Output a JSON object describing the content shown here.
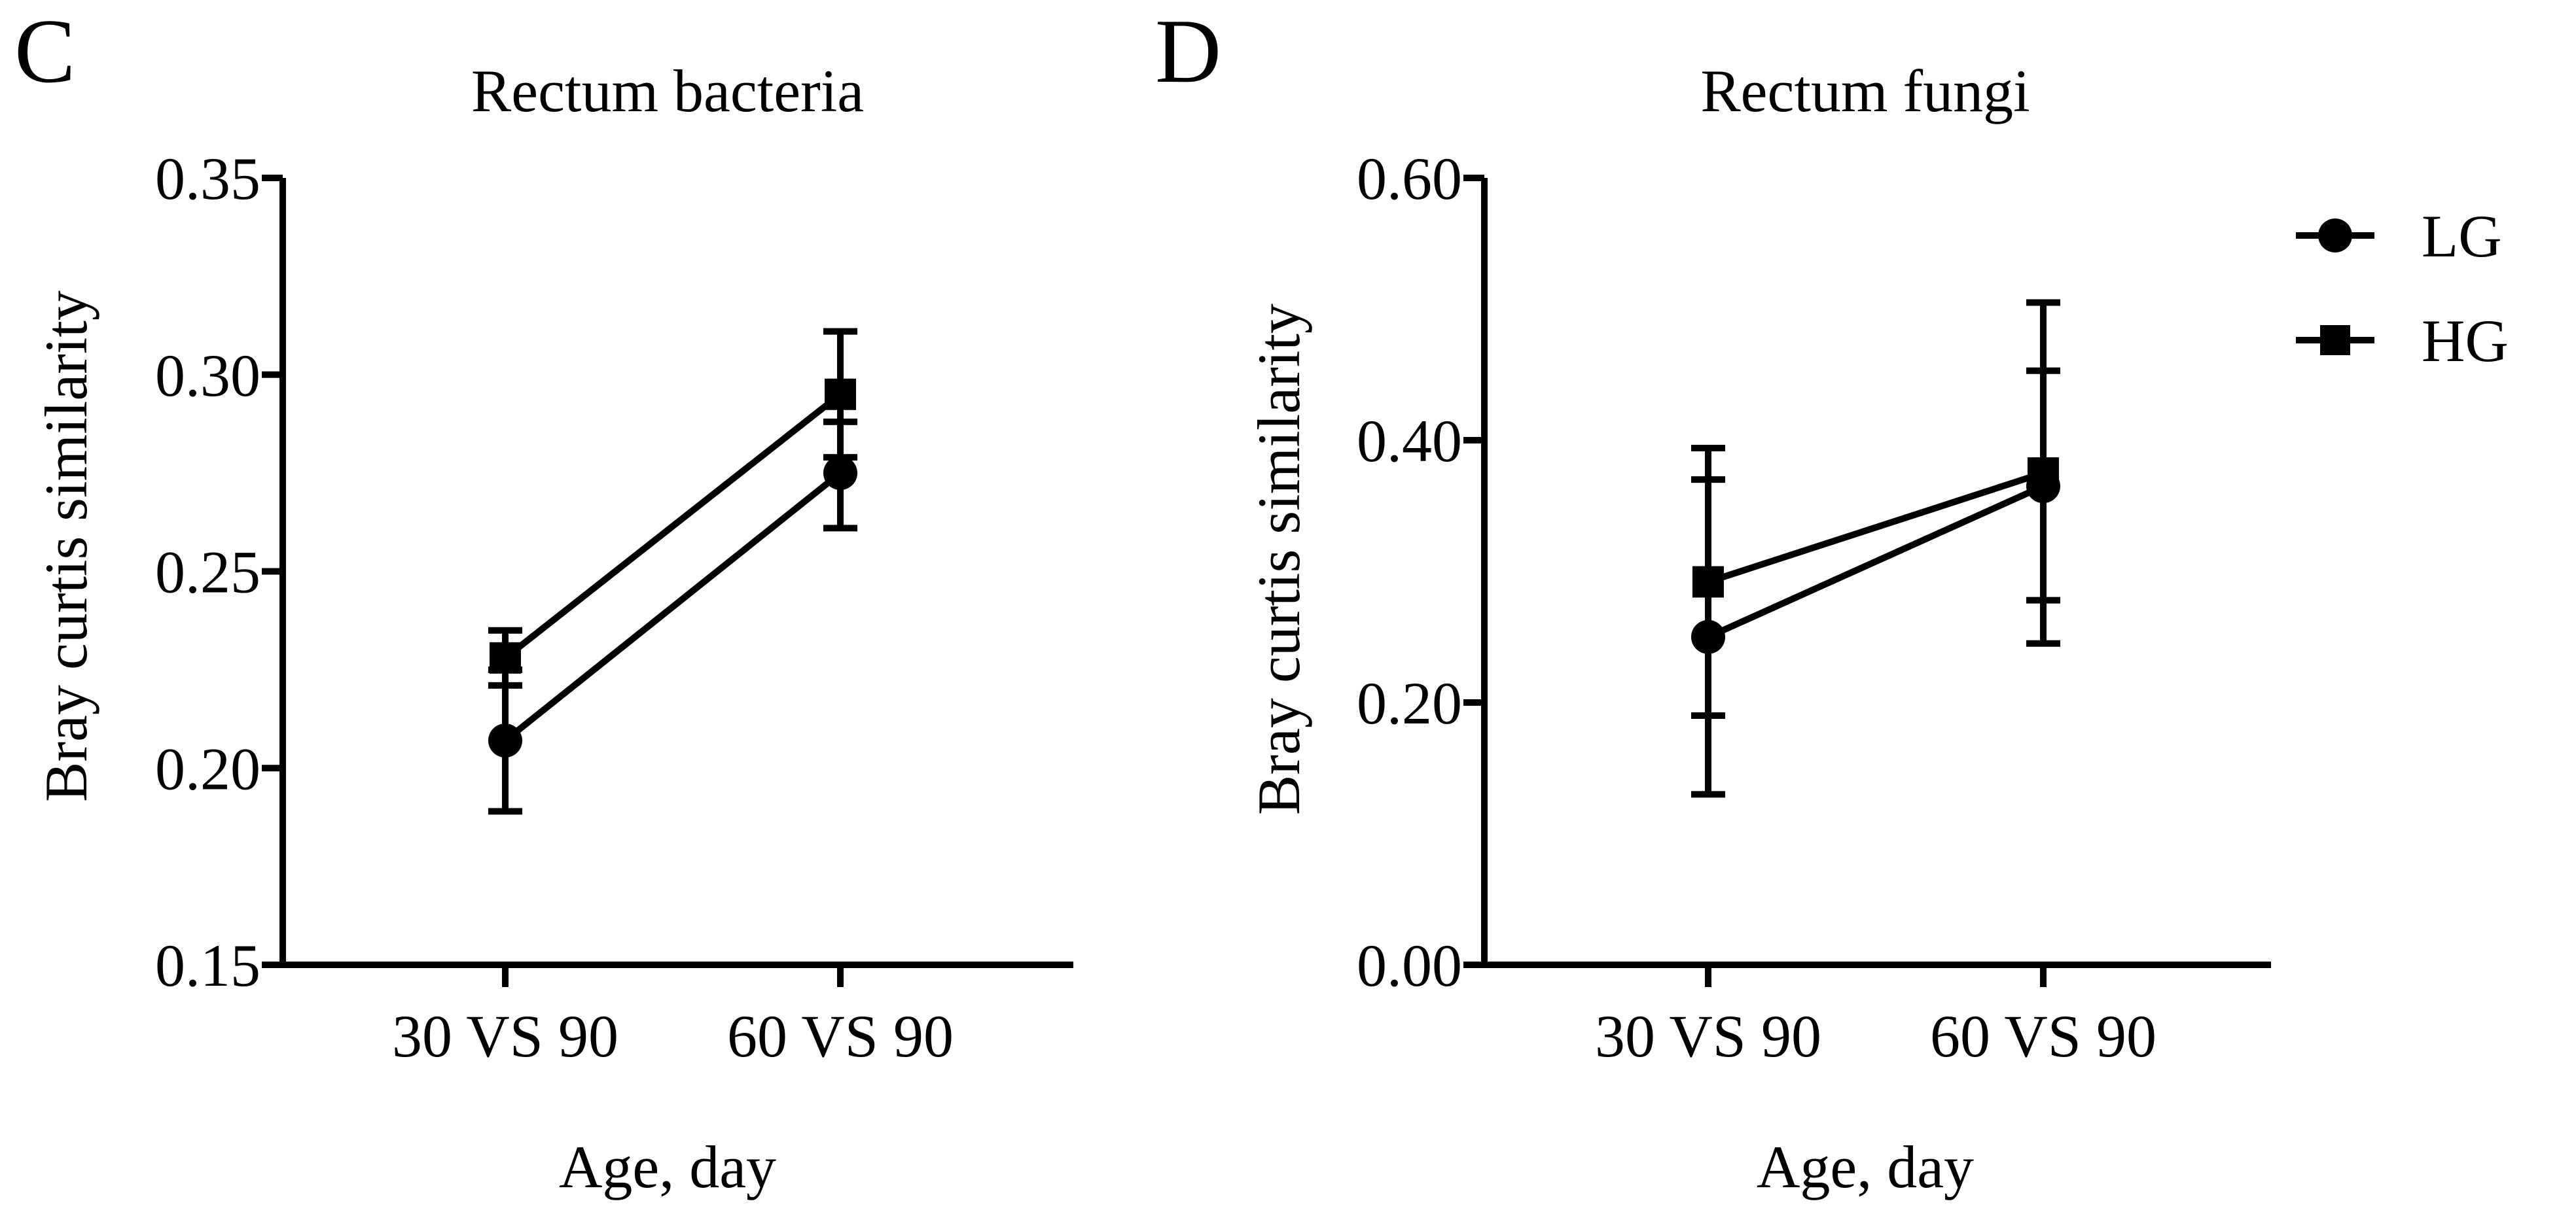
{
  "panels": [
    {
      "panel_label": "C",
      "legend": null
    },
    {
      "panel_label": "D",
      "legend": [
        {
          "name": "LG",
          "marker": "circle-icon"
        },
        {
          "name": "HG",
          "marker": "square-icon"
        }
      ]
    }
  ],
  "chart_data": [
    {
      "type": "line",
      "title": "Rectum bacteria",
      "xlabel": "Age, day",
      "ylabel": "Bray curtis similarity",
      "categories": [
        "30 VS 90",
        "60 VS 90"
      ],
      "ylim": [
        0.15,
        0.35
      ],
      "yticks": [
        0.15,
        0.2,
        0.25,
        0.3,
        0.35
      ],
      "ytick_labels": [
        "0.15",
        "0.20",
        "0.25",
        "0.30",
        "0.35"
      ],
      "series": [
        {
          "name": "LG",
          "marker": "circle",
          "values": [
            0.207,
            0.275
          ],
          "err_low": [
            0.189,
            0.261
          ],
          "err_high": [
            0.225,
            0.288
          ]
        },
        {
          "name": "HG",
          "marker": "square",
          "values": [
            0.228,
            0.295
          ],
          "err_low": [
            0.221,
            0.279
          ],
          "err_high": [
            0.235,
            0.311
          ]
        }
      ]
    },
    {
      "type": "line",
      "title": "Rectum fungi",
      "xlabel": "Age, day",
      "ylabel": "Bray curtis similarity",
      "categories": [
        "30 VS 90",
        "60 VS 90"
      ],
      "ylim": [
        0.0,
        0.6
      ],
      "yticks": [
        0.0,
        0.2,
        0.4,
        0.6
      ],
      "ytick_labels": [
        "0.00",
        "0.20",
        "0.40",
        "0.60"
      ],
      "series": [
        {
          "name": "LG",
          "marker": "circle",
          "values": [
            0.25,
            0.365
          ],
          "err_low": [
            0.13,
            0.245
          ],
          "err_high": [
            0.37,
            0.505
          ]
        },
        {
          "name": "HG",
          "marker": "square",
          "values": [
            0.292,
            0.375
          ],
          "err_low": [
            0.19,
            0.278
          ],
          "err_high": [
            0.394,
            0.453
          ]
        }
      ]
    }
  ]
}
